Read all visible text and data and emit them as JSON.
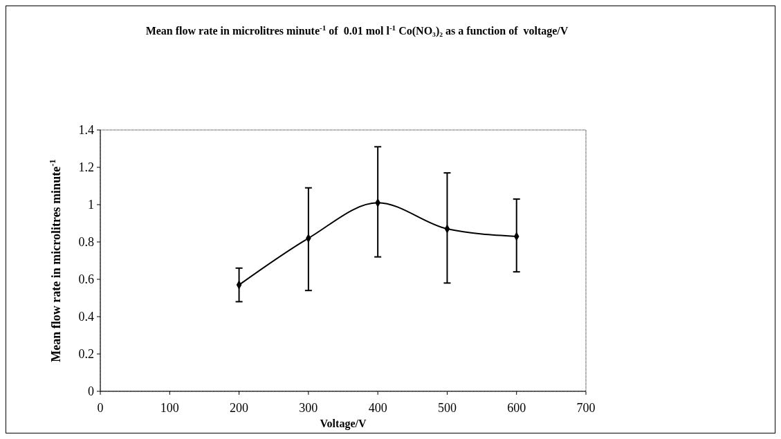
{
  "chart_data": {
    "type": "line",
    "title": "Mean flow rate in microlitres minute$^{-1}$ of  0.01 mol l$^{-1}$ Co(NO₃)₂ as a function of  voltage/V",
    "xlabel": "Voltage/V",
    "ylabel": "Mean flow rate in microlitres minute$^{-1}$",
    "x": [
      200,
      300,
      400,
      500,
      600
    ],
    "series": [
      {
        "color": "#000000",
        "values": [
          0.57,
          0.82,
          1.01,
          0.87,
          0.83
        ],
        "errors": [
          [
            0.48,
            0.66
          ],
          [
            0.54,
            1.09
          ],
          [
            0.72,
            1.31
          ],
          [
            0.58,
            1.17
          ],
          [
            0.64,
            1.03
          ]
        ]
      }
    ],
    "xlim": [
      0,
      700
    ],
    "xticks": [
      0,
      100,
      200,
      300,
      400,
      500,
      600,
      700
    ],
    "ylim": [
      0,
      1.4
    ],
    "yticks": [
      0,
      0.2,
      0.4,
      0.6,
      0.8,
      1,
      1.2,
      1.4
    ],
    "marker": "diamond",
    "line_style": "solid"
  }
}
